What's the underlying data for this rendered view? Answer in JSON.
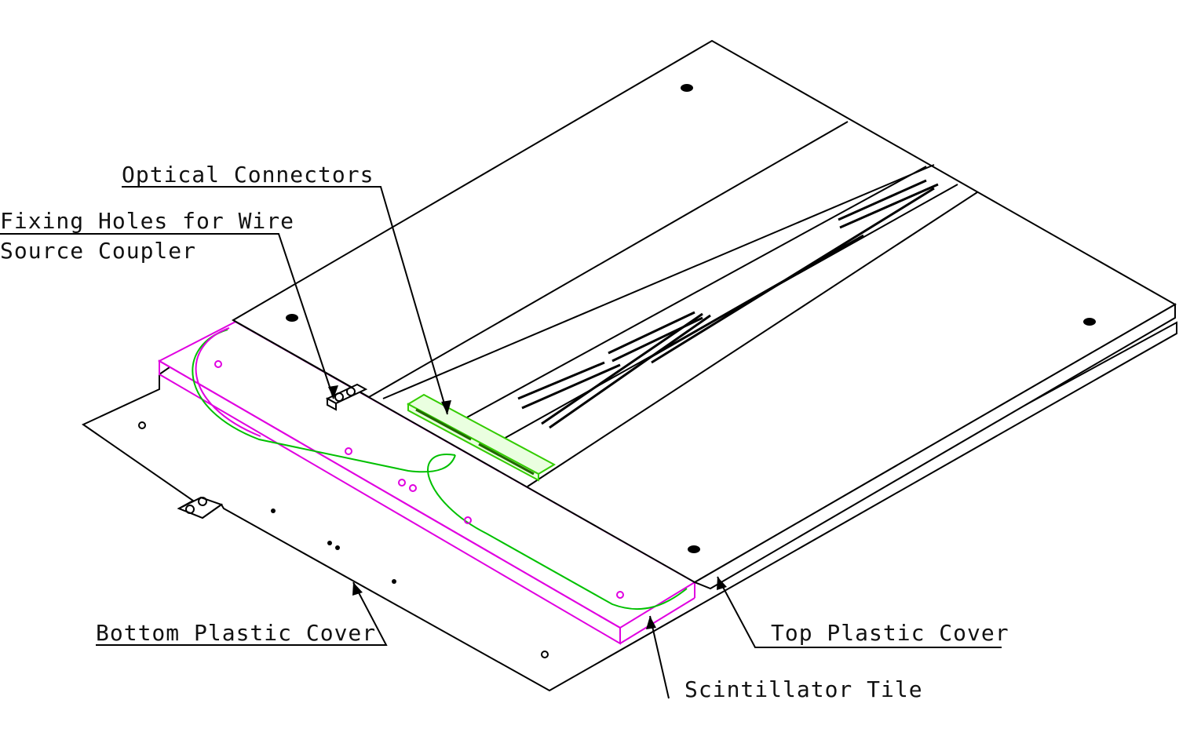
{
  "labels": {
    "optical_connectors": "Optical Connectors",
    "fixing_holes_line1": "Fixing Holes for Wire",
    "fixing_holes_line2": "Source Coupler",
    "bottom_cover": "Bottom Plastic Cover",
    "top_cover": "Top Plastic Cover",
    "scintillator": "Scintillator Tile"
  },
  "colors": {
    "line": "#000000",
    "tile": "#e000e0",
    "fiber": "#00c000",
    "connector": "#66ff33"
  }
}
